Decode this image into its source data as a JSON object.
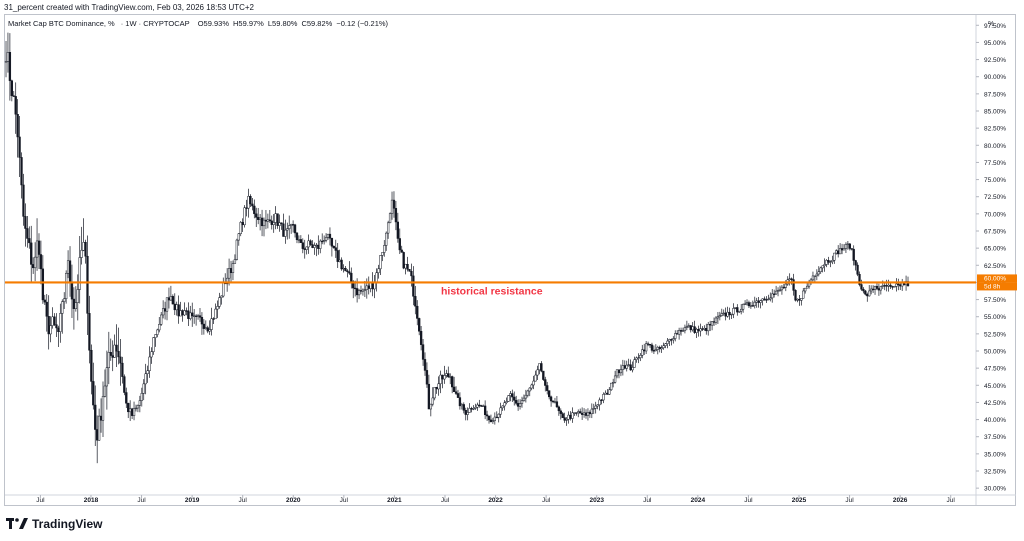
{
  "header": {
    "created_line": "31_percent created with TradingView.com, Feb 03, 2026 18:53 UTC+2"
  },
  "legend": {
    "symbol": "Market Cap BTC Dominance, %",
    "interval": "1W",
    "exchange": "CRYPTOCAP",
    "open": "O59.93%",
    "high": "H59.97%",
    "low": "L59.80%",
    "close": "C59.82%",
    "change": "−0.12 (−0.21%)"
  },
  "axis": {
    "unit_label": "%",
    "price_badge": "60.00%",
    "countdown_badge": "5d 8h"
  },
  "annotation": {
    "text": "historical resistance",
    "color": "#f23645",
    "line_color": "#f57c00",
    "level": 60.0
  },
  "footer": {
    "brand": "TradingView"
  },
  "colors": {
    "candle": "#131722",
    "grid_text": "#131722",
    "badge_bg": "#f57c00"
  },
  "chart_data": {
    "type": "candlestick",
    "title": "Market Cap BTC Dominance, %",
    "ylabel": "%",
    "ylim": [
      29.0,
      99.0
    ],
    "y_ticks": [
      "30.00%",
      "32.50%",
      "35.00%",
      "37.50%",
      "40.00%",
      "42.50%",
      "45.00%",
      "47.50%",
      "50.00%",
      "52.50%",
      "55.00%",
      "57.50%",
      "60.00%",
      "62.50%",
      "65.00%",
      "67.50%",
      "70.00%",
      "72.50%",
      "75.00%",
      "77.50%",
      "80.00%",
      "82.50%",
      "85.00%",
      "87.50%",
      "90.00%",
      "92.50%",
      "95.00%",
      "97.50%"
    ],
    "x_ticks": [
      {
        "label": "Jul",
        "t": 2017.5,
        "bold": false
      },
      {
        "label": "2018",
        "t": 2018.0,
        "bold": true
      },
      {
        "label": "Jul",
        "t": 2018.5,
        "bold": false
      },
      {
        "label": "2019",
        "t": 2019.0,
        "bold": true
      },
      {
        "label": "Jul",
        "t": 2019.5,
        "bold": false
      },
      {
        "label": "2020",
        "t": 2020.0,
        "bold": true
      },
      {
        "label": "Jul",
        "t": 2020.5,
        "bold": false
      },
      {
        "label": "2021",
        "t": 2021.0,
        "bold": true
      },
      {
        "label": "Jul",
        "t": 2021.5,
        "bold": false
      },
      {
        "label": "2022",
        "t": 2022.0,
        "bold": true
      },
      {
        "label": "Jul",
        "t": 2022.5,
        "bold": false
      },
      {
        "label": "2023",
        "t": 2023.0,
        "bold": true
      },
      {
        "label": "Jul",
        "t": 2023.5,
        "bold": false
      },
      {
        "label": "2024",
        "t": 2024.0,
        "bold": true
      },
      {
        "label": "Jul",
        "t": 2024.5,
        "bold": false
      },
      {
        "label": "2025",
        "t": 2025.0,
        "bold": true
      },
      {
        "label": "Jul",
        "t": 2025.5,
        "bold": false
      },
      {
        "label": "2026",
        "t": 2026.0,
        "bold": true
      },
      {
        "label": "Jul",
        "t": 2026.5,
        "bold": false
      }
    ],
    "x_range": [
      2017.15,
      2026.75
    ],
    "path_points": [
      [
        2017.16,
        94.0
      ],
      [
        2017.22,
        88.0
      ],
      [
        2017.27,
        83.0
      ],
      [
        2017.3,
        76.0
      ],
      [
        2017.34,
        68.0
      ],
      [
        2017.4,
        64.0
      ],
      [
        2017.44,
        62.0
      ],
      [
        2017.48,
        67.0
      ],
      [
        2017.52,
        58.0
      ],
      [
        2017.56,
        54.0
      ],
      [
        2017.62,
        53.5
      ],
      [
        2017.68,
        52.5
      ],
      [
        2017.73,
        57.0
      ],
      [
        2017.76,
        63.0
      ],
      [
        2017.8,
        60.0
      ],
      [
        2017.84,
        56.0
      ],
      [
        2017.88,
        61.0
      ],
      [
        2017.92,
        66.0
      ],
      [
        2017.95,
        62.0
      ],
      [
        2018.0,
        46.0
      ],
      [
        2018.05,
        37.5
      ],
      [
        2018.08,
        39.0
      ],
      [
        2018.12,
        44.0
      ],
      [
        2018.17,
        48.0
      ],
      [
        2018.24,
        51.5
      ],
      [
        2018.3,
        48.0
      ],
      [
        2018.34,
        42.5
      ],
      [
        2018.4,
        40.5
      ],
      [
        2018.47,
        42.0
      ],
      [
        2018.55,
        46.5
      ],
      [
        2018.62,
        52.0
      ],
      [
        2018.7,
        55.0
      ],
      [
        2018.78,
        58.5
      ],
      [
        2018.86,
        55.5
      ],
      [
        2018.93,
        56.0
      ],
      [
        2019.0,
        54.5
      ],
      [
        2019.08,
        54.5
      ],
      [
        2019.16,
        53.5
      ],
      [
        2019.24,
        56.0
      ],
      [
        2019.32,
        60.0
      ],
      [
        2019.4,
        62.5
      ],
      [
        2019.47,
        67.5
      ],
      [
        2019.55,
        72.0
      ],
      [
        2019.63,
        70.0
      ],
      [
        2019.72,
        68.5
      ],
      [
        2019.82,
        69.5
      ],
      [
        2019.92,
        67.0
      ],
      [
        2020.0,
        68.0
      ],
      [
        2020.08,
        65.0
      ],
      [
        2020.16,
        65.5
      ],
      [
        2020.24,
        65.0
      ],
      [
        2020.32,
        67.0
      ],
      [
        2020.4,
        64.5
      ],
      [
        2020.48,
        62.5
      ],
      [
        2020.56,
        60.5
      ],
      [
        2020.64,
        58.5
      ],
      [
        2020.72,
        59.0
      ],
      [
        2020.8,
        60.0
      ],
      [
        2020.86,
        63.5
      ],
      [
        2020.92,
        67.0
      ],
      [
        2020.97,
        72.0
      ],
      [
        2021.0,
        70.0
      ],
      [
        2021.04,
        65.0
      ],
      [
        2021.1,
        62.5
      ],
      [
        2021.16,
        61.0
      ],
      [
        2021.22,
        56.0
      ],
      [
        2021.28,
        50.0
      ],
      [
        2021.34,
        42.0
      ],
      [
        2021.4,
        44.5
      ],
      [
        2021.47,
        46.0
      ],
      [
        2021.55,
        46.5
      ],
      [
        2021.62,
        43.0
      ],
      [
        2021.7,
        41.0
      ],
      [
        2021.78,
        42.0
      ],
      [
        2021.86,
        42.0
      ],
      [
        2021.94,
        40.0
      ],
      [
        2022.0,
        40.5
      ],
      [
        2022.06,
        41.5
      ],
      [
        2022.14,
        43.5
      ],
      [
        2022.22,
        42.0
      ],
      [
        2022.3,
        43.5
      ],
      [
        2022.38,
        45.5
      ],
      [
        2022.44,
        48.0
      ],
      [
        2022.5,
        44.0
      ],
      [
        2022.58,
        42.5
      ],
      [
        2022.66,
        40.0
      ],
      [
        2022.74,
        40.5
      ],
      [
        2022.82,
        41.0
      ],
      [
        2022.9,
        40.5
      ],
      [
        2022.96,
        41.5
      ],
      [
        2023.04,
        43.0
      ],
      [
        2023.12,
        44.0
      ],
      [
        2023.18,
        46.5
      ],
      [
        2023.26,
        48.0
      ],
      [
        2023.34,
        47.5
      ],
      [
        2023.42,
        49.5
      ],
      [
        2023.5,
        51.0
      ],
      [
        2023.58,
        50.0
      ],
      [
        2023.66,
        50.5
      ],
      [
        2023.74,
        52.0
      ],
      [
        2023.82,
        53.0
      ],
      [
        2023.9,
        53.5
      ],
      [
        2023.98,
        53.0
      ],
      [
        2024.06,
        53.0
      ],
      [
        2024.14,
        54.0
      ],
      [
        2024.22,
        55.0
      ],
      [
        2024.3,
        55.5
      ],
      [
        2024.38,
        56.0
      ],
      [
        2024.46,
        56.5
      ],
      [
        2024.54,
        57.0
      ],
      [
        2024.62,
        57.5
      ],
      [
        2024.7,
        58.0
      ],
      [
        2024.78,
        58.5
      ],
      [
        2024.86,
        59.5
      ],
      [
        2024.92,
        60.5
      ],
      [
        2024.97,
        57.0
      ],
      [
        2025.02,
        58.0
      ],
      [
        2025.08,
        59.5
      ],
      [
        2025.14,
        61.0
      ],
      [
        2025.2,
        62.0
      ],
      [
        2025.26,
        63.0
      ],
      [
        2025.32,
        63.5
      ],
      [
        2025.38,
        64.5
      ],
      [
        2025.44,
        65.0
      ],
      [
        2025.5,
        65.5
      ],
      [
        2025.55,
        63.0
      ],
      [
        2025.6,
        60.0
      ],
      [
        2025.65,
        58.0
      ],
      [
        2025.7,
        58.5
      ],
      [
        2025.75,
        59.5
      ],
      [
        2025.8,
        59.0
      ],
      [
        2025.86,
        59.5
      ],
      [
        2025.92,
        59.0
      ],
      [
        2025.98,
        59.5
      ],
      [
        2026.02,
        59.8
      ],
      [
        2026.09,
        59.82
      ]
    ]
  }
}
